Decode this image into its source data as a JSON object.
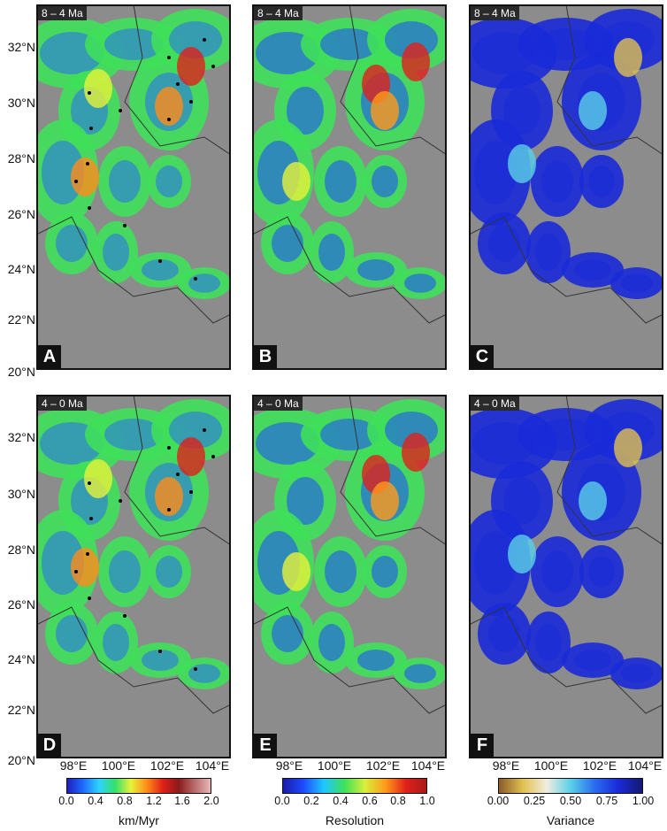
{
  "panels": [
    {
      "letter": "A",
      "period": "8 – 4 Ma",
      "layer": "erosion"
    },
    {
      "letter": "B",
      "period": "8 – 4 Ma",
      "layer": "resolution"
    },
    {
      "letter": "C",
      "period": "8 – 4 Ma",
      "layer": "variance"
    },
    {
      "letter": "D",
      "period": "4 – 0 Ma",
      "layer": "erosion"
    },
    {
      "letter": "E",
      "period": "4 – 0 Ma",
      "layer": "resolution"
    },
    {
      "letter": "F",
      "period": "4 – 0 Ma",
      "layer": "variance"
    }
  ],
  "lat_labels": [
    "32°N",
    "30°N",
    "28°N",
    "26°N",
    "24°N",
    "22°N",
    "20°N"
  ],
  "lon_labels": [
    "98°E",
    "100°E",
    "102°E",
    "104°E"
  ],
  "colorbars": [
    {
      "title": "km/Myr",
      "ticks": [
        "0.0",
        "0.4",
        "0.8",
        "1.2",
        "1.6",
        "2.0"
      ],
      "colors": [
        "#1f1fbf",
        "#1e6bff",
        "#2fd3ff",
        "#34e06b",
        "#e8f23a",
        "#ff8c1a",
        "#e0201a",
        "#8a1a1a",
        "#b86b6b",
        "#e8b8b8"
      ]
    },
    {
      "title": "Resolution",
      "ticks": [
        "0.0",
        "0.2",
        "0.4",
        "0.6",
        "0.8",
        "1.0"
      ],
      "colors": [
        "#1a1aa8",
        "#1e4bff",
        "#1ec8ff",
        "#3ee05a",
        "#d8f03a",
        "#ff9a1a",
        "#e0201a",
        "#a81a1a"
      ]
    },
    {
      "title": "Variance",
      "ticks": [
        "0.00",
        "0.25",
        "0.50",
        "0.75",
        "1.00"
      ],
      "colors": [
        "#8a5a2a",
        "#e0c050",
        "#f2ede0",
        "#5ad0e8",
        "#2a6cf0",
        "#1a2ad8",
        "#141870"
      ]
    }
  ]
}
